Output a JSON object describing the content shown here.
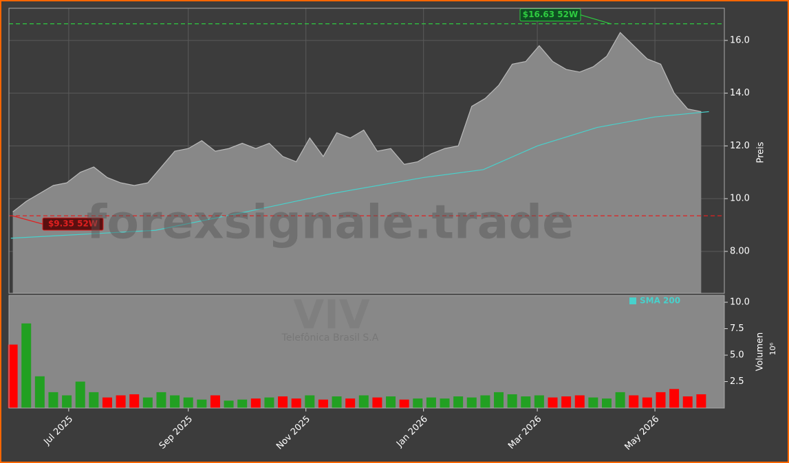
{
  "watermark": "forexsignale.trade",
  "symbol": "VIV",
  "company": "Telefônica Brasil S.A",
  "chart_data": [
    {
      "type": "area",
      "ylabel": "Preis",
      "ylim": [
        6.41,
        17.22
      ],
      "yticks": [
        {
          "value": 8,
          "label": "8.00"
        },
        {
          "value": 10,
          "label": "10.0"
        },
        {
          "value": 12,
          "label": "12.0"
        },
        {
          "value": 14,
          "label": "14.0"
        },
        {
          "value": 16,
          "label": "16.0"
        }
      ],
      "xlim": [
        "2025-05-31",
        "2026-06-06"
      ],
      "grid": true,
      "series": [
        {
          "color": "#888888",
          "x": [
            "2025-06-02",
            "2025-06-09",
            "2025-06-16",
            "2025-06-23",
            "2025-06-30",
            "2025-07-07",
            "2025-07-14",
            "2025-07-21",
            "2025-07-28",
            "2025-08-04",
            "2025-08-11",
            "2025-08-18",
            "2025-08-25",
            "2025-09-01",
            "2025-09-08",
            "2025-09-15",
            "2025-09-22",
            "2025-09-29",
            "2025-10-06",
            "2025-10-13",
            "2025-10-20",
            "2025-10-27",
            "2025-11-03",
            "2025-11-10",
            "2025-11-17",
            "2025-11-24",
            "2025-12-01",
            "2025-12-08",
            "2025-12-15",
            "2025-12-22",
            "2025-12-29",
            "2026-01-05",
            "2026-01-12",
            "2026-01-19",
            "2026-01-26",
            "2026-02-02",
            "2026-02-09",
            "2026-02-16",
            "2026-02-23",
            "2026-03-02",
            "2026-03-09",
            "2026-03-16",
            "2026-03-23",
            "2026-03-30",
            "2026-04-06",
            "2026-04-13",
            "2026-04-20",
            "2026-04-27",
            "2026-05-04",
            "2026-05-11",
            "2026-05-18",
            "2026-05-25"
          ],
          "values": [
            9.5,
            9.9,
            10.2,
            10.5,
            10.6,
            11.0,
            11.2,
            10.8,
            10.6,
            10.5,
            10.6,
            11.2,
            11.8,
            11.9,
            12.2,
            11.8,
            11.9,
            12.1,
            11.9,
            12.1,
            11.6,
            11.4,
            12.3,
            11.6,
            12.5,
            12.3,
            12.6,
            11.8,
            11.9,
            11.3,
            11.4,
            11.7,
            11.9,
            12.0,
            13.5,
            13.8,
            14.3,
            15.1,
            15.2,
            15.8,
            15.2,
            14.9,
            14.8,
            15.0,
            15.4,
            16.3,
            15.8,
            15.3,
            15.1,
            14.0,
            13.4,
            13.3
          ]
        },
        {
          "name": "SMA 200",
          "color": "#48d1cc",
          "x": [
            "2025-06-01",
            "2025-08-15",
            "2025-10-01",
            "2025-11-15",
            "2026-01-01",
            "2026-02-01",
            "2026-03-01",
            "2026-04-01",
            "2026-05-01",
            "2026-05-29"
          ],
          "values": [
            8.5,
            8.8,
            9.5,
            10.2,
            10.8,
            11.1,
            12.0,
            12.7,
            13.1,
            13.3
          ]
        }
      ],
      "reference_lines": [
        {
          "value": 16.63,
          "label": "$16.63 52W",
          "color": "#2ecc40"
        },
        {
          "value": 9.35,
          "label": "$9.35 52W",
          "color": "#e02020"
        }
      ]
    },
    {
      "type": "bar",
      "ylabel": "Volumen",
      "scale_label": "10⁶",
      "ylim": [
        0,
        10.65
      ],
      "yticks": [
        2.5,
        {
          "value": 5,
          "label": "5.0"
        },
        7.5,
        {
          "value": 10,
          "label": "10.0"
        }
      ],
      "xlim": [
        "2025-05-31",
        "2026-06-06"
      ],
      "xticks": [
        {
          "value": "2025-07-01",
          "label": "Jul 2025"
        },
        {
          "value": "2025-09-01",
          "label": "Sep 2025"
        },
        {
          "value": "2025-11-01",
          "label": "Nov 2025"
        },
        {
          "value": "2026-01-01",
          "label": "Jan 2026"
        },
        {
          "value": "2026-03-01",
          "label": "Mar 2026"
        },
        {
          "value": "2026-05-01",
          "label": "May 2026"
        }
      ],
      "x": [
        "2025-06-02",
        "2025-06-09",
        "2025-06-16",
        "2025-06-23",
        "2025-06-30",
        "2025-07-07",
        "2025-07-14",
        "2025-07-21",
        "2025-07-28",
        "2025-08-04",
        "2025-08-11",
        "2025-08-18",
        "2025-08-25",
        "2025-09-01",
        "2025-09-08",
        "2025-09-15",
        "2025-09-22",
        "2025-09-29",
        "2025-10-06",
        "2025-10-13",
        "2025-10-20",
        "2025-10-27",
        "2025-11-03",
        "2025-11-10",
        "2025-11-17",
        "2025-11-24",
        "2025-12-01",
        "2025-12-08",
        "2025-12-15",
        "2025-12-22",
        "2025-12-29",
        "2026-01-05",
        "2026-01-12",
        "2026-01-19",
        "2026-01-26",
        "2026-02-02",
        "2026-02-09",
        "2026-02-16",
        "2026-02-23",
        "2026-03-02",
        "2026-03-09",
        "2026-03-16",
        "2026-03-23",
        "2026-03-30",
        "2026-04-06",
        "2026-04-13",
        "2026-04-20",
        "2026-04-27",
        "2026-05-04",
        "2026-05-11",
        "2026-05-18",
        "2026-05-25"
      ],
      "values": [
        6,
        8,
        3,
        1.5,
        1.2,
        2.5,
        1.5,
        1.0,
        1.2,
        1.3,
        1.0,
        1.5,
        1.2,
        1.0,
        0.8,
        1.2,
        0.7,
        0.8,
        0.9,
        1.0,
        1.1,
        0.9,
        1.2,
        0.8,
        1.1,
        0.9,
        1.2,
        1.0,
        1.1,
        0.8,
        0.9,
        1.0,
        0.9,
        1.1,
        1.0,
        1.2,
        1.5,
        1.3,
        1.1,
        1.2,
        1.0,
        1.1,
        1.2,
        1.0,
        0.9,
        1.5,
        1.2,
        1.0,
        1.5,
        1.8,
        1.1,
        1.3
      ],
      "colors": [
        "#ff0000",
        "#22a022",
        "#22a022",
        "#22a022",
        "#22a022",
        "#22a022",
        "#22a022",
        "#ff0000",
        "#ff0000",
        "#ff0000",
        "#22a022",
        "#22a022",
        "#22a022",
        "#22a022",
        "#22a022",
        "#ff0000",
        "#22a022",
        "#22a022",
        "#ff0000",
        "#22a022",
        "#ff0000",
        "#ff0000",
        "#22a022",
        "#ff0000",
        "#22a022",
        "#ff0000",
        "#22a022",
        "#ff0000",
        "#22a022",
        "#ff0000",
        "#22a022",
        "#22a022",
        "#22a022",
        "#22a022",
        "#22a022",
        "#22a022",
        "#22a022",
        "#22a022",
        "#22a022",
        "#22a022",
        "#ff0000",
        "#ff0000",
        "#ff0000",
        "#22a022",
        "#22a022",
        "#22a022",
        "#ff0000",
        "#ff0000",
        "#ff0000",
        "#ff0000",
        "#ff0000",
        "#ff0000"
      ]
    }
  ]
}
